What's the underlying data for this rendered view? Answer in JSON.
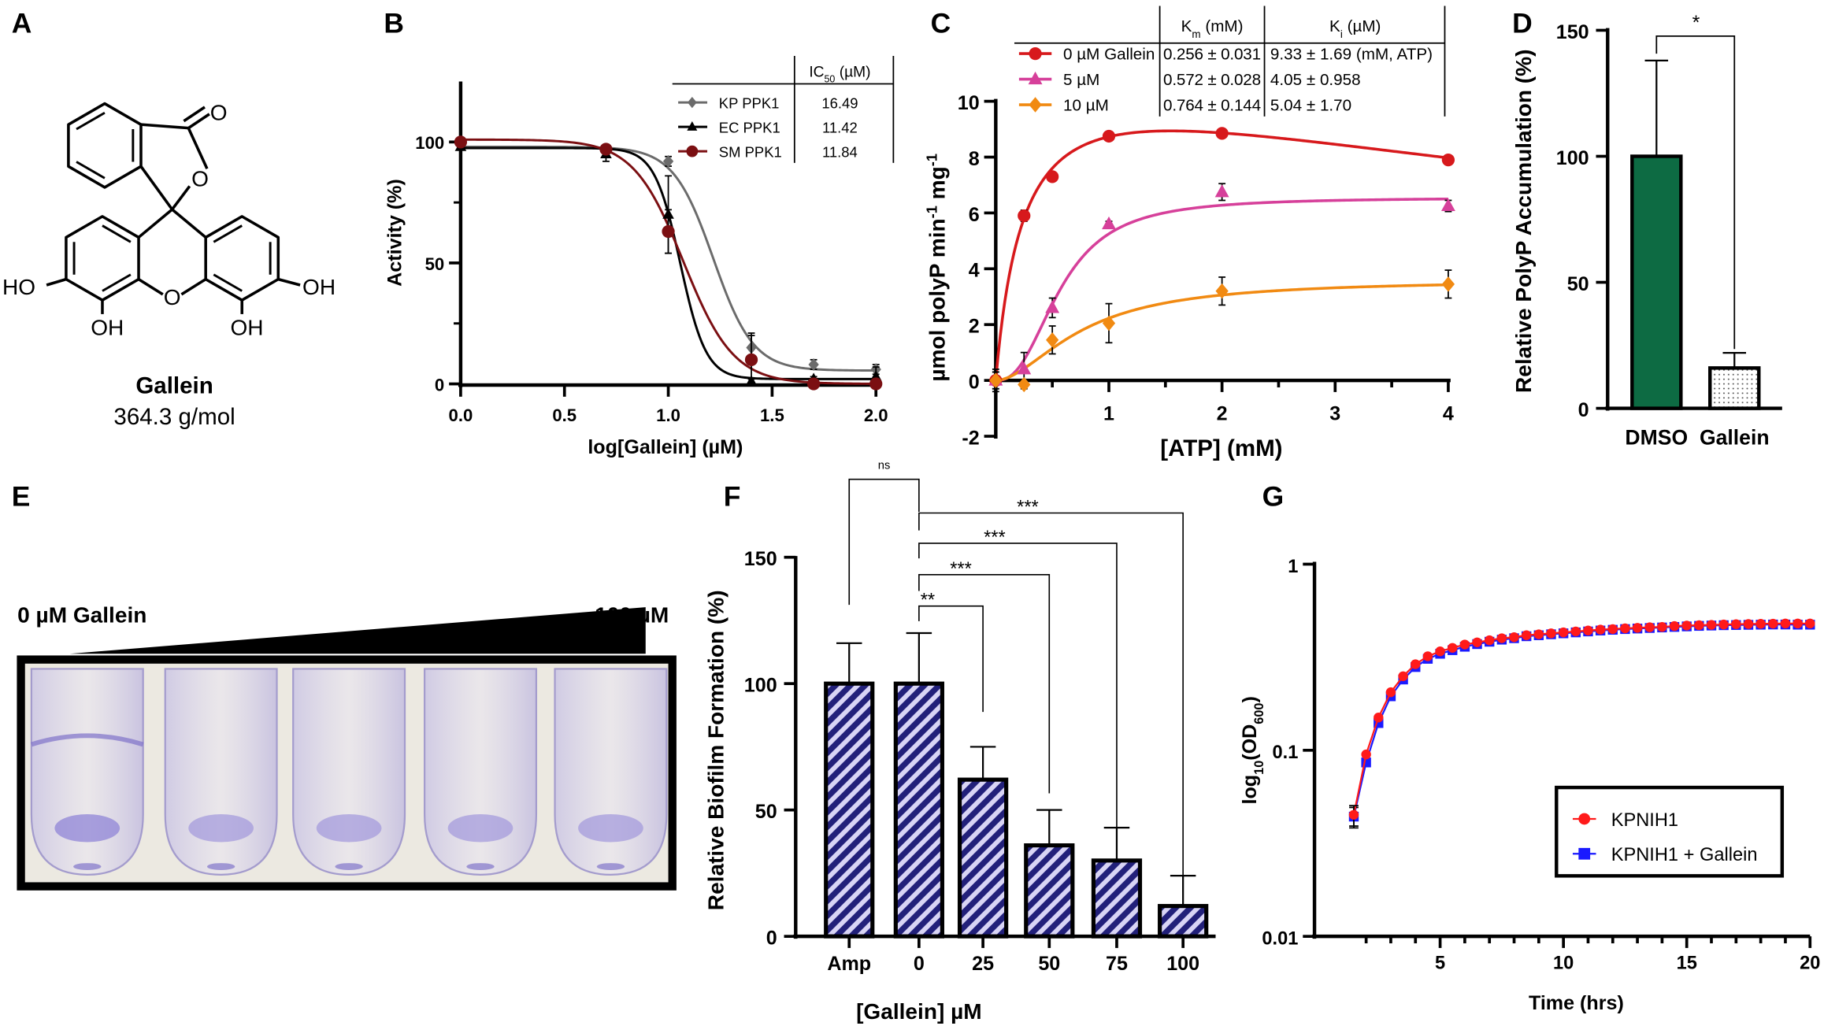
{
  "panel_labels": [
    "A",
    "B",
    "C",
    "D",
    "E",
    "F",
    "G"
  ],
  "structure": {
    "name": "Gallein",
    "mw": "364.3 g/mol",
    "atoms": {
      "carbonyl_o": "O",
      "ring_o": "O",
      "lactone_o": "O",
      "ho_left": "HO",
      "oh_left": "OH",
      "oh_right_bottom": "OH",
      "oh_right": "OH"
    }
  },
  "colors": {
    "kp": "#6b6b6b",
    "ec": "#000000",
    "sm": "#7b0f12",
    "c0": "#d7191c",
    "c5": "#d6409a",
    "c10": "#f18a12",
    "dmso": "#0d6b43",
    "bar_f": "#22207a",
    "bar_f_stripe": "#d8d4f5",
    "g1": "#ff1a1a",
    "g2": "#1a1aff"
  },
  "chart_data": [
    {
      "id": "B",
      "type": "line",
      "xlabel": "log[Gallein] (µM)",
      "ylabel": "Activity (%)",
      "xlim": [
        0,
        2.0
      ],
      "ylim": [
        0,
        125
      ],
      "xticks": [
        "0.0",
        "0.5",
        "1.0",
        "1.5",
        "2.0"
      ],
      "yticks": [
        "0",
        "50",
        "100"
      ],
      "table_header": [
        "IC",
        "50",
        " (µM)"
      ],
      "x": [
        0,
        0.7,
        1.0,
        1.4,
        1.7,
        2.0
      ],
      "series": [
        {
          "name": "KP PPK1",
          "ic50": "16.49",
          "marker": "diamond",
          "values": [
            99,
            97,
            92,
            15,
            8,
            6
          ],
          "err": [
            1,
            2,
            2,
            6,
            2,
            2
          ],
          "fit": {
            "top": 98,
            "bottom": 5.5,
            "logic50": 1.217,
            "hill": 4.5
          }
        },
        {
          "name": "EC PPK1",
          "ic50": "11.42",
          "marker": "triangle",
          "values": [
            98,
            95,
            70,
            1,
            2,
            3
          ],
          "err": [
            1,
            3,
            16,
            1,
            1,
            4
          ],
          "fit": {
            "top": 97.5,
            "bottom": 2,
            "logic50": 1.058,
            "hill": 7
          }
        },
        {
          "name": "SM PPK1",
          "ic50": "11.84",
          "marker": "circle",
          "values": [
            100,
            97,
            63,
            10,
            0,
            0
          ],
          "err": [
            1,
            1,
            9,
            10,
            1,
            1
          ],
          "fit": {
            "top": 101,
            "bottom": 0,
            "logic50": 1.073,
            "hill": 3.6
          }
        }
      ]
    },
    {
      "id": "C",
      "type": "line",
      "xlabel": "[ATP] (mM)",
      "ylabel": [
        "µmol polyP min",
        "-1",
        " mg",
        "-1"
      ],
      "xlim": [
        0,
        4
      ],
      "ylim": [
        -2,
        10
      ],
      "xticks": [
        "1",
        "2",
        "3",
        "4"
      ],
      "yticks": [
        "-2",
        "0",
        "2",
        "4",
        "6",
        "8",
        "10"
      ],
      "table_headers": [
        [
          "K",
          "m",
          " (mM)"
        ],
        [
          "K",
          "i",
          " (µM)"
        ]
      ],
      "x": [
        0,
        0.25,
        0.5,
        1,
        2,
        4
      ],
      "series": [
        {
          "name": "0 µM Gallein",
          "km": "0.256 ± 0.031",
          "ki": "9.33 ± 1.69 (mM, ATP)",
          "marker": "circle",
          "values": [
            0,
            5.9,
            7.3,
            8.75,
            8.85,
            7.9
          ],
          "err": [
            0.4,
            0.2,
            0.1,
            0.1,
            0.1,
            0.1
          ],
          "fit": {
            "model": "substrate-inhibition",
            "vmax": 11.9,
            "km": 0.256,
            "ki": 9.33
          }
        },
        {
          "name": "5 µM",
          "km": "0.572 ± 0.028",
          "ki": "4.05 ± 0.958",
          "marker": "triangle",
          "values": [
            0,
            0.4,
            2.6,
            5.6,
            6.75,
            6.25
          ],
          "err": [
            0.3,
            0.6,
            0.35,
            0.1,
            0.3,
            0.2
          ],
          "fit": {
            "model": "hill",
            "vmax": 6.55,
            "k": 0.572,
            "n": 2.5
          }
        },
        {
          "name": "10 µM",
          "km": "0.764 ± 0.144",
          "ki": "5.04 ± 1.70",
          "marker": "diamond",
          "values": [
            0,
            -0.15,
            1.45,
            2.05,
            3.2,
            3.45
          ],
          "err": [
            0.3,
            0.15,
            0.5,
            0.7,
            0.5,
            0.5
          ],
          "fit": {
            "model": "hill",
            "vmax": 3.6,
            "k": 0.764,
            "n": 1.8
          }
        }
      ]
    },
    {
      "id": "D",
      "type": "bar",
      "ylabel": "Relative PolyP Accumulation (%)",
      "ylim": [
        0,
        150
      ],
      "yticks": [
        "0",
        "50",
        "100",
        "150"
      ],
      "categories": [
        "DMSO",
        "Gallein"
      ],
      "values": [
        100,
        16
      ],
      "err": [
        38,
        6
      ],
      "significance": [
        {
          "pair": [
            "DMSO",
            "Gallein"
          ],
          "label": "*"
        }
      ]
    },
    {
      "id": "F",
      "type": "bar",
      "xlabel": "[Gallein] µM",
      "ylabel": "Relative Biofilm Formation (%)",
      "ylim": [
        0,
        150
      ],
      "yticks": [
        "0",
        "50",
        "100",
        "150"
      ],
      "categories": [
        "Amp",
        "0",
        "25",
        "50",
        "75",
        "100"
      ],
      "values": [
        100,
        100,
        62,
        36,
        30,
        12
      ],
      "err": [
        16,
        20,
        13,
        14,
        13,
        12
      ],
      "significance": [
        {
          "pair": [
            "Amp",
            "0"
          ],
          "label": "ns"
        },
        {
          "pair": [
            "0",
            "100"
          ],
          "label": "***"
        },
        {
          "pair": [
            "0",
            "75"
          ],
          "label": "***"
        },
        {
          "pair": [
            "0",
            "50"
          ],
          "label": "***"
        },
        {
          "pair": [
            "0",
            "25"
          ],
          "label": "**"
        }
      ]
    },
    {
      "id": "G",
      "type": "line",
      "yscale": "log",
      "xlabel": "Time (hrs)",
      "ylabel": [
        "log",
        "10",
        "(OD",
        "600",
        ")"
      ],
      "xlim": [
        0,
        20
      ],
      "ylim": [
        0.01,
        1
      ],
      "xticks": [
        "5",
        "10",
        "15",
        "20"
      ],
      "yticks": [
        "0.01",
        "0.1",
        "1"
      ],
      "legend_position": "lower-right",
      "x": [
        1.5,
        2,
        2.5,
        3,
        3.5,
        4,
        4.5,
        5,
        5.5,
        6,
        6.5,
        7,
        7.5,
        8,
        8.5,
        9,
        9.5,
        10,
        10.5,
        11,
        11.5,
        12,
        12.5,
        13,
        13.5,
        14,
        14.5,
        15,
        15.5,
        16,
        16.5,
        17,
        17.5,
        18,
        18.5,
        19,
        19.5,
        20
      ],
      "series": [
        {
          "name": "KPNIH1",
          "marker": "circle",
          "values": [
            0.045,
            0.095,
            0.15,
            0.205,
            0.25,
            0.29,
            0.32,
            0.34,
            0.355,
            0.37,
            0.38,
            0.39,
            0.4,
            0.405,
            0.415,
            0.42,
            0.425,
            0.43,
            0.435,
            0.44,
            0.445,
            0.448,
            0.452,
            0.455,
            0.458,
            0.46,
            0.465,
            0.468,
            0.47,
            0.472,
            0.474,
            0.476,
            0.477,
            0.478,
            0.479,
            0.48,
            0.48,
            0.48
          ]
        },
        {
          "name": "KPNIH1 + Gallein",
          "marker": "square",
          "values": [
            0.044,
            0.086,
            0.14,
            0.195,
            0.24,
            0.28,
            0.31,
            0.33,
            0.345,
            0.36,
            0.372,
            0.383,
            0.393,
            0.4,
            0.41,
            0.415,
            0.42,
            0.425,
            0.43,
            0.435,
            0.44,
            0.444,
            0.448,
            0.451,
            0.454,
            0.457,
            0.46,
            0.463,
            0.466,
            0.468,
            0.47,
            0.471,
            0.472,
            0.473,
            0.474,
            0.474,
            0.473,
            0.473
          ]
        }
      ]
    }
  ],
  "photo": {
    "left_label": "0 µM Gallein",
    "right_label": "100 µM",
    "tube_count": 5
  }
}
